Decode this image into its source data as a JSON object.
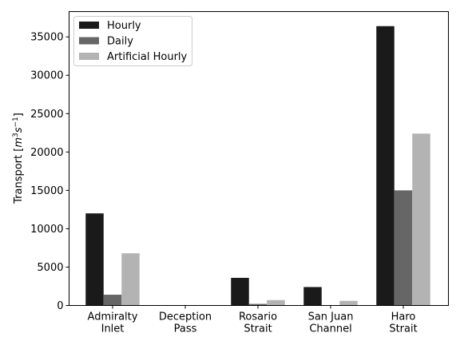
{
  "chart_data": {
    "type": "bar",
    "categories": [
      [
        "Admiralty",
        "Inlet"
      ],
      [
        "Deception",
        "Pass"
      ],
      [
        "Rosario",
        "Strait"
      ],
      [
        "San Juan",
        "Channel"
      ],
      [
        "Haro",
        "Strait"
      ]
    ],
    "series": [
      {
        "name": "Hourly",
        "color": "#1a1a1a",
        "values": [
          12000,
          0,
          3600,
          2400,
          36400
        ]
      },
      {
        "name": "Daily",
        "color": "#666666",
        "values": [
          1400,
          0,
          200,
          0,
          15000
        ]
      },
      {
        "name": "Artificial Hourly",
        "color": "#b3b3b3",
        "values": [
          6800,
          0,
          700,
          600,
          22400
        ]
      }
    ],
    "ylabel_main": "Transport [",
    "ylabel_unit": "m",
    "ylabel_exp1": "3",
    "ylabel_s": "s",
    "ylabel_exp2": "−1",
    "ylabel_close": "]",
    "ylim": [
      0,
      38300
    ],
    "yticks": [
      0,
      5000,
      10000,
      15000,
      20000,
      25000,
      30000,
      35000
    ],
    "legend_position": "top-left",
    "grid": false
  }
}
